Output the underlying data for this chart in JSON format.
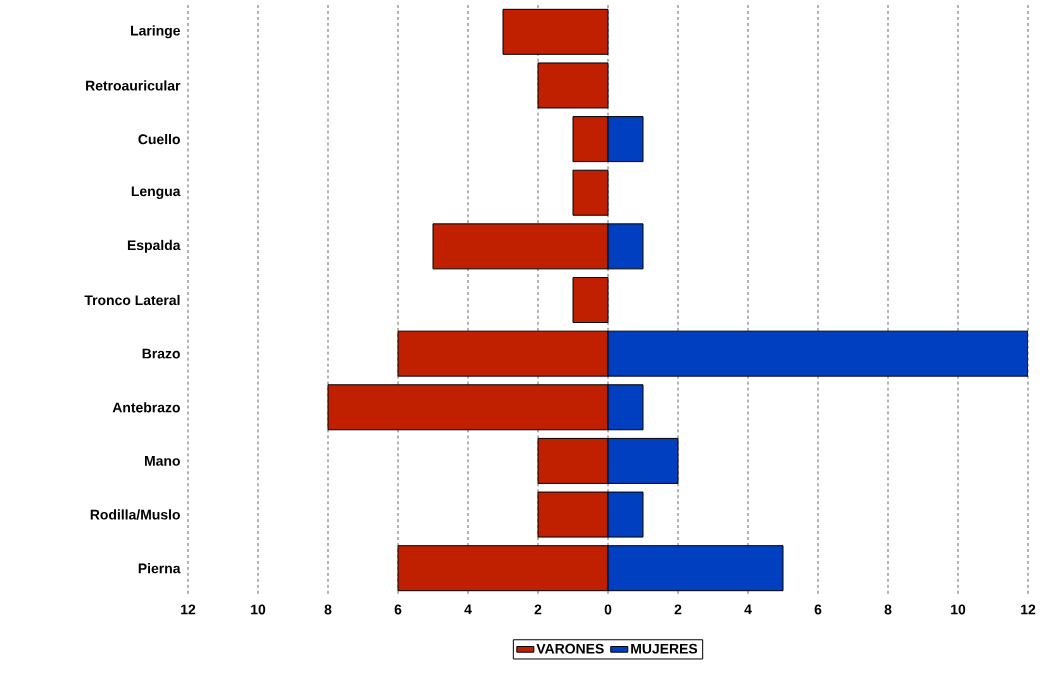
{
  "chart_data": {
    "type": "bar",
    "orientation": "horizontal",
    "categories": [
      "Laringe",
      "Retroauricular",
      "Cuello",
      "Lengua",
      "Espalda",
      "Tronco Lateral",
      "Brazo",
      "Antebrazo",
      "Mano",
      "Rodilla/Muslo",
      "Pierna"
    ],
    "series": [
      {
        "name": "VARONES",
        "color": "#c02000",
        "values": [
          -3,
          -2,
          -1,
          -1,
          -5,
          -1,
          -6,
          -8,
          -2,
          -2,
          -6
        ]
      },
      {
        "name": "MUJERES",
        "color": "#0040c0",
        "values": [
          0,
          0,
          1,
          0,
          1,
          0,
          12,
          1,
          2,
          1,
          5
        ]
      }
    ],
    "xlim": [
      -12,
      12
    ],
    "xticks": [
      {
        "value": -12,
        "label": "12"
      },
      {
        "value": -10,
        "label": "10"
      },
      {
        "value": -8,
        "label": "8"
      },
      {
        "value": -6,
        "label": "6"
      },
      {
        "value": -4,
        "label": "4"
      },
      {
        "value": -2,
        "label": "2"
      },
      0,
      2,
      4,
      6,
      8,
      10,
      12
    ],
    "grid": "x",
    "legend": "bottom",
    "stacked": true
  }
}
